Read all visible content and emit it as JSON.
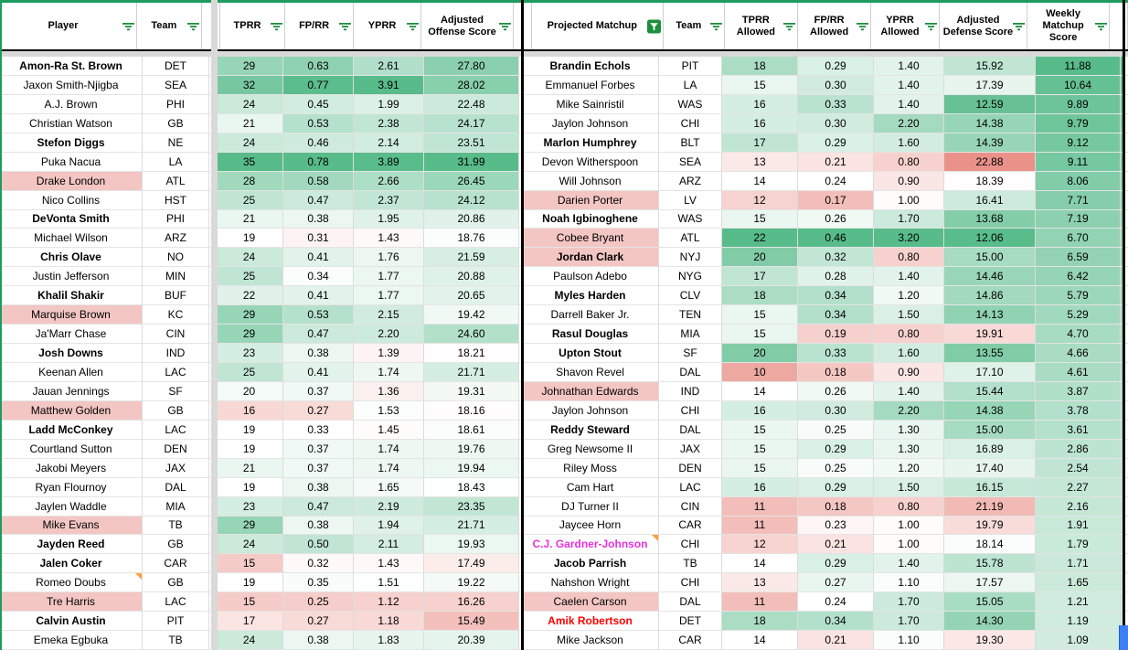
{
  "colors": {
    "accent_green": "#1e9c5f",
    "heat_green": "#57bb8a",
    "heat_red": "#e67c73",
    "pink_row": "#f3c6c3",
    "note_orange": "#f5a33b",
    "scrollbar_blue": "#3d7ef7",
    "magenta_player": "#e732dc",
    "red_player": "#ff0000"
  },
  "scales": {
    "l_tprr": {
      "green": 35,
      "white": 19,
      "red": 9
    },
    "l_fprr": {
      "green": 0.78,
      "white": 0.33,
      "red": 0.12
    },
    "l_yprr": {
      "green": 3.91,
      "white": 1.48,
      "red": 0.45
    },
    "l_adj": {
      "green": 32,
      "white": 18.3,
      "red": 12.5
    },
    "r_tprra": {
      "green": 22,
      "white": 14,
      "red": 8
    },
    "r_fprra": {
      "green": 0.46,
      "white": 0.24,
      "red": 0.1
    },
    "r_yprra": {
      "green": 3.2,
      "white": 1.02,
      "red": 0.4
    },
    "r_adjdef": {
      "green": 12.0,
      "white": 18.3,
      "red": 23.8
    },
    "r_weekly": {
      "green": 11.88,
      "white": -3,
      "red": -10
    }
  },
  "left_table": {
    "headers": [
      {
        "label": "Player",
        "filter": "lines"
      },
      {
        "label": "Team",
        "filter": "lines"
      },
      {
        "label": "TPRR",
        "filter": "lines"
      },
      {
        "label": "FP/RR",
        "filter": "lines"
      },
      {
        "label": "YPRR",
        "filter": "lines"
      },
      {
        "label": "Adjusted Offense Score",
        "filter": "lines"
      }
    ],
    "stat_keys": [
      "l_tprr",
      "l_fprr",
      "l_yprr",
      "l_adj"
    ],
    "rows": [
      {
        "player": "Amon-Ra St. Brown",
        "team": "DET",
        "vals": [
          "29",
          "0.63",
          "2.61",
          "27.80"
        ],
        "f": "b"
      },
      {
        "player": "Jaxon Smith-Njigba",
        "team": "SEA",
        "vals": [
          "32",
          "0.77",
          "3.91",
          "28.02"
        ],
        "f": ""
      },
      {
        "player": "A.J. Brown",
        "team": "PHI",
        "vals": [
          "24",
          "0.45",
          "1.99",
          "22.48"
        ],
        "f": ""
      },
      {
        "player": "Christian Watson",
        "team": "GB",
        "vals": [
          "21",
          "0.53",
          "2.38",
          "24.17"
        ],
        "f": ""
      },
      {
        "player": "Stefon Diggs",
        "team": "NE",
        "vals": [
          "24",
          "0.46",
          "2.14",
          "23.51"
        ],
        "f": "b"
      },
      {
        "player": "Puka Nacua",
        "team": "LA",
        "vals": [
          "35",
          "0.78",
          "3.89",
          "31.99"
        ],
        "f": ""
      },
      {
        "player": "Drake London",
        "team": "ATL",
        "vals": [
          "28",
          "0.58",
          "2.66",
          "26.45"
        ],
        "f": "p"
      },
      {
        "player": "Nico Collins",
        "team": "HST",
        "vals": [
          "25",
          "0.47",
          "2.37",
          "24.12"
        ],
        "f": ""
      },
      {
        "player": "DeVonta Smith",
        "team": "PHI",
        "vals": [
          "21",
          "0.38",
          "1.95",
          "20.86"
        ],
        "f": "b"
      },
      {
        "player": "Michael Wilson",
        "team": "ARZ",
        "vals": [
          "19",
          "0.31",
          "1.43",
          "18.76"
        ],
        "f": ""
      },
      {
        "player": "Chris Olave",
        "team": "NO",
        "vals": [
          "24",
          "0.41",
          "1.76",
          "21.59"
        ],
        "f": "b"
      },
      {
        "player": "Justin Jefferson",
        "team": "MIN",
        "vals": [
          "25",
          "0.34",
          "1.77",
          "20.88"
        ],
        "f": ""
      },
      {
        "player": "Khalil Shakir",
        "team": "BUF",
        "vals": [
          "22",
          "0.41",
          "1.77",
          "20.65"
        ],
        "f": "b"
      },
      {
        "player": "Marquise Brown",
        "team": "KC",
        "vals": [
          "29",
          "0.53",
          "2.15",
          "19.42"
        ],
        "f": "p"
      },
      {
        "player": "Ja'Marr Chase",
        "team": "CIN",
        "vals": [
          "29",
          "0.47",
          "2.20",
          "24.60"
        ],
        "f": ""
      },
      {
        "player": "Josh Downs",
        "team": "IND",
        "vals": [
          "23",
          "0.38",
          "1.39",
          "18.21"
        ],
        "f": "b"
      },
      {
        "player": "Keenan Allen",
        "team": "LAC",
        "vals": [
          "25",
          "0.41",
          "1.74",
          "21.71"
        ],
        "f": ""
      },
      {
        "player": "Jauan Jennings",
        "team": "SF",
        "vals": [
          "20",
          "0.37",
          "1.36",
          "19.31"
        ],
        "f": ""
      },
      {
        "player": "Matthew Golden",
        "team": "GB",
        "vals": [
          "16",
          "0.27",
          "1.53",
          "18.16"
        ],
        "f": "p"
      },
      {
        "player": "Ladd McConkey",
        "team": "LAC",
        "vals": [
          "19",
          "0.33",
          "1.45",
          "18.61"
        ],
        "f": "b"
      },
      {
        "player": "Courtland Sutton",
        "team": "DEN",
        "vals": [
          "19",
          "0.37",
          "1.74",
          "19.76"
        ],
        "f": ""
      },
      {
        "player": "Jakobi Meyers",
        "team": "JAX",
        "vals": [
          "21",
          "0.37",
          "1.74",
          "19.94"
        ],
        "f": ""
      },
      {
        "player": "Ryan Flournoy",
        "team": "DAL",
        "vals": [
          "19",
          "0.38",
          "1.65",
          "18.43"
        ],
        "f": ""
      },
      {
        "player": "Jaylen Waddle",
        "team": "MIA",
        "vals": [
          "23",
          "0.47",
          "2.19",
          "23.35"
        ],
        "f": ""
      },
      {
        "player": "Mike Evans",
        "team": "TB",
        "vals": [
          "29",
          "0.38",
          "1.94",
          "21.71"
        ],
        "f": "p"
      },
      {
        "player": "Jayden Reed",
        "team": "GB",
        "vals": [
          "24",
          "0.50",
          "2.11",
          "19.93"
        ],
        "f": "b"
      },
      {
        "player": "Jalen Coker",
        "team": "CAR",
        "vals": [
          "15",
          "0.32",
          "1.43",
          "17.49"
        ],
        "f": "b"
      },
      {
        "player": "Romeo Doubs",
        "team": "GB",
        "vals": [
          "19",
          "0.35",
          "1.51",
          "19.22"
        ],
        "f": "n"
      },
      {
        "player": "Tre Harris",
        "team": "LAC",
        "vals": [
          "15",
          "0.25",
          "1.12",
          "16.26"
        ],
        "f": "p"
      },
      {
        "player": "Calvin Austin",
        "team": "PIT",
        "vals": [
          "17",
          "0.27",
          "1.18",
          "15.49"
        ],
        "f": "b"
      },
      {
        "player": "Emeka Egbuka",
        "team": "TB",
        "vals": [
          "24",
          "0.38",
          "1.83",
          "20.39"
        ],
        "f": ""
      }
    ]
  },
  "right_table": {
    "headers": [
      {
        "label": "Projected Matchup",
        "filter": "filled"
      },
      {
        "label": "Team",
        "filter": "lines"
      },
      {
        "label": "TPRR Allowed",
        "filter": "lines"
      },
      {
        "label": "FP/RR Allowed",
        "filter": "lines"
      },
      {
        "label": "YPRR Allowed",
        "filter": "lines"
      },
      {
        "label": "Adjusted Defense Score",
        "filter": "lines"
      },
      {
        "label": "Weekly Matchup Score",
        "filter": "lines"
      }
    ],
    "stat_keys": [
      "r_tprra",
      "r_fprra",
      "r_yprra",
      "r_adjdef",
      "r_weekly"
    ],
    "rows": [
      {
        "name": "Brandin Echols",
        "team": "PIT",
        "vals": [
          "18",
          "0.29",
          "1.40",
          "15.92",
          "11.88"
        ],
        "f": "b"
      },
      {
        "name": "Emmanuel Forbes",
        "team": "LA",
        "vals": [
          "15",
          "0.30",
          "1.40",
          "17.39",
          "10.64"
        ],
        "f": ""
      },
      {
        "name": "Mike Sainristil",
        "team": "WAS",
        "vals": [
          "16",
          "0.33",
          "1.40",
          "12.59",
          "9.89"
        ],
        "f": ""
      },
      {
        "name": "Jaylon Johnson",
        "team": "CHI",
        "vals": [
          "16",
          "0.30",
          "2.20",
          "14.38",
          "9.79"
        ],
        "f": ""
      },
      {
        "name": "Marlon Humphrey",
        "team": "BLT",
        "vals": [
          "17",
          "0.29",
          "1.60",
          "14.39",
          "9.12"
        ],
        "f": "b"
      },
      {
        "name": "Devon Witherspoon",
        "team": "SEA",
        "vals": [
          "13",
          "0.21",
          "0.80",
          "22.88",
          "9.11"
        ],
        "f": ""
      },
      {
        "name": "Will Johnson",
        "team": "ARZ",
        "vals": [
          "14",
          "0.24",
          "0.90",
          "18.39",
          "8.06"
        ],
        "f": ""
      },
      {
        "name": "Darien Porter",
        "team": "LV",
        "vals": [
          "12",
          "0.17",
          "1.00",
          "16.41",
          "7.71"
        ],
        "f": "p"
      },
      {
        "name": "Noah Igbinoghene",
        "team": "WAS",
        "vals": [
          "15",
          "0.26",
          "1.70",
          "13.68",
          "7.19"
        ],
        "f": "b"
      },
      {
        "name": "Cobee Bryant",
        "team": "ATL",
        "vals": [
          "22",
          "0.46",
          "3.20",
          "12.06",
          "6.70"
        ],
        "f": "p"
      },
      {
        "name": "Jordan Clark",
        "team": "NYJ",
        "vals": [
          "20",
          "0.32",
          "0.80",
          "15.00",
          "6.59"
        ],
        "f": "bp"
      },
      {
        "name": "Paulson Adebo",
        "team": "NYG",
        "vals": [
          "17",
          "0.28",
          "1.40",
          "14.46",
          "6.42"
        ],
        "f": ""
      },
      {
        "name": "Myles Harden",
        "team": "CLV",
        "vals": [
          "18",
          "0.34",
          "1.20",
          "14.86",
          "5.79"
        ],
        "f": "b"
      },
      {
        "name": "Darrell Baker Jr.",
        "team": "TEN",
        "vals": [
          "15",
          "0.34",
          "1.50",
          "14.13",
          "5.29"
        ],
        "f": ""
      },
      {
        "name": "Rasul Douglas",
        "team": "MIA",
        "vals": [
          "15",
          "0.19",
          "0.80",
          "19.91",
          "4.70"
        ],
        "f": "b"
      },
      {
        "name": "Upton Stout",
        "team": "SF",
        "vals": [
          "20",
          "0.33",
          "1.60",
          "13.55",
          "4.66"
        ],
        "f": "b"
      },
      {
        "name": "Shavon Revel",
        "team": "DAL",
        "vals": [
          "10",
          "0.18",
          "0.90",
          "17.10",
          "4.61"
        ],
        "f": ""
      },
      {
        "name": "Johnathan Edwards",
        "team": "IND",
        "vals": [
          "14",
          "0.26",
          "1.40",
          "15.44",
          "3.87"
        ],
        "f": "p"
      },
      {
        "name": "Jaylon Johnson",
        "team": "CHI",
        "vals": [
          "16",
          "0.30",
          "2.20",
          "14.38",
          "3.78"
        ],
        "f": ""
      },
      {
        "name": "Reddy Steward",
        "team": "DAL",
        "vals": [
          "15",
          "0.25",
          "1.30",
          "15.00",
          "3.61"
        ],
        "f": "b"
      },
      {
        "name": "Greg Newsome II",
        "team": "JAX",
        "vals": [
          "15",
          "0.29",
          "1.30",
          "16.89",
          "2.86"
        ],
        "f": ""
      },
      {
        "name": "Riley Moss",
        "team": "DEN",
        "vals": [
          "15",
          "0.25",
          "1.20",
          "17.40",
          "2.54"
        ],
        "f": ""
      },
      {
        "name": "Cam Hart",
        "team": "LAC",
        "vals": [
          "16",
          "0.29",
          "1.50",
          "16.15",
          "2.27"
        ],
        "f": ""
      },
      {
        "name": "DJ Turner II",
        "team": "CIN",
        "vals": [
          "11",
          "0.18",
          "0.80",
          "21.19",
          "2.16"
        ],
        "f": ""
      },
      {
        "name": "Jaycee Horn",
        "team": "CAR",
        "vals": [
          "11",
          "0.23",
          "1.00",
          "19.79",
          "1.91"
        ],
        "f": ""
      },
      {
        "name": "C.J. Gardner-Johnson",
        "team": "CHI",
        "vals": [
          "12",
          "0.21",
          "1.00",
          "18.14",
          "1.79"
        ],
        "f": "Mn"
      },
      {
        "name": "Jacob Parrish",
        "team": "TB",
        "vals": [
          "14",
          "0.29",
          "1.40",
          "15.78",
          "1.71"
        ],
        "f": "b"
      },
      {
        "name": "Nahshon Wright",
        "team": "CHI",
        "vals": [
          "13",
          "0.27",
          "1.10",
          "17.57",
          "1.65"
        ],
        "f": ""
      },
      {
        "name": "Caelen Carson",
        "team": "DAL",
        "vals": [
          "11",
          "0.24",
          "1.70",
          "15.05",
          "1.21"
        ],
        "f": "p"
      },
      {
        "name": "Amik Robertson",
        "team": "DET",
        "vals": [
          "18",
          "0.34",
          "1.70",
          "14.30",
          "1.19"
        ],
        "f": "R"
      },
      {
        "name": "Mike Jackson",
        "team": "CAR",
        "vals": [
          "14",
          "0.21",
          "1.10",
          "19.30",
          "1.09"
        ],
        "f": ""
      }
    ]
  }
}
